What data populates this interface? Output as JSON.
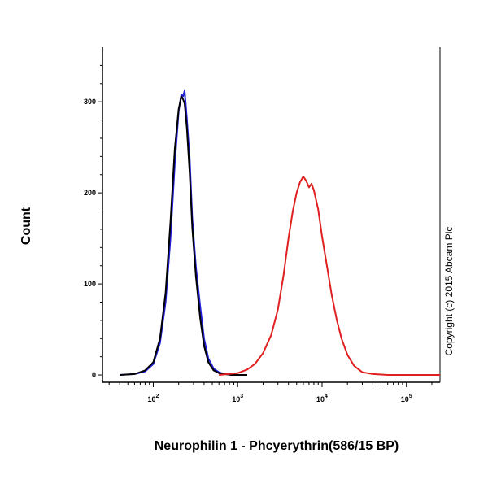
{
  "chart_data": {
    "type": "line",
    "xlabel": "Neurophilin 1 - Phcyerythrin(586/15 BP)",
    "ylabel": "Count",
    "x_scale": "log",
    "xlim": [
      25,
      250000
    ],
    "ylim": [
      -8,
      360
    ],
    "y_ticks": [
      0,
      100,
      200,
      300
    ],
    "x_major_ticks": [
      {
        "value": 100,
        "base": "10",
        "exp": "2"
      },
      {
        "value": 1000,
        "base": "10",
        "exp": "3"
      },
      {
        "value": 10000,
        "base": "10",
        "exp": "4"
      },
      {
        "value": 100000,
        "base": "10",
        "exp": "5"
      }
    ],
    "grid": false,
    "annotation": "Copyright (c) 2015 Abcam Plc",
    "series": [
      {
        "color": "#1f1fd6",
        "x": [
          40,
          60,
          80,
          100,
          120,
          140,
          160,
          180,
          200,
          215,
          225,
          235,
          250,
          270,
          290,
          320,
          360,
          400,
          450,
          520,
          600,
          700,
          850,
          1000,
          1300
        ],
        "y": [
          0,
          1,
          4,
          12,
          35,
          80,
          150,
          232,
          290,
          308,
          306,
          312,
          282,
          238,
          172,
          118,
          75,
          40,
          18,
          7,
          3,
          1,
          0,
          0,
          0
        ]
      },
      {
        "color": "#000000",
        "x": [
          40,
          60,
          80,
          100,
          120,
          140,
          160,
          180,
          200,
          215,
          225,
          235,
          250,
          270,
          290,
          320,
          360,
          400,
          450,
          520,
          600,
          700,
          850,
          1000,
          1300
        ],
        "y": [
          0,
          1,
          5,
          14,
          40,
          90,
          168,
          248,
          292,
          306,
          303,
          298,
          272,
          222,
          162,
          108,
          62,
          32,
          14,
          5,
          2,
          1,
          0,
          0,
          0
        ]
      },
      {
        "color": "#e02020",
        "x": [
          600,
          1000,
          1300,
          1600,
          2000,
          2500,
          3000,
          3500,
          4000,
          4500,
          5000,
          5500,
          6000,
          6500,
          7000,
          7500,
          8000,
          9000,
          10000,
          11500,
          13000,
          15000,
          17000,
          20000,
          24000,
          30000,
          40000,
          60000,
          120000,
          250000
        ],
        "y": [
          0,
          2,
          6,
          12,
          24,
          44,
          72,
          110,
          150,
          180,
          200,
          212,
          218,
          213,
          206,
          210,
          203,
          182,
          152,
          118,
          88,
          60,
          40,
          22,
          10,
          3,
          1,
          0,
          0,
          0
        ]
      }
    ]
  }
}
